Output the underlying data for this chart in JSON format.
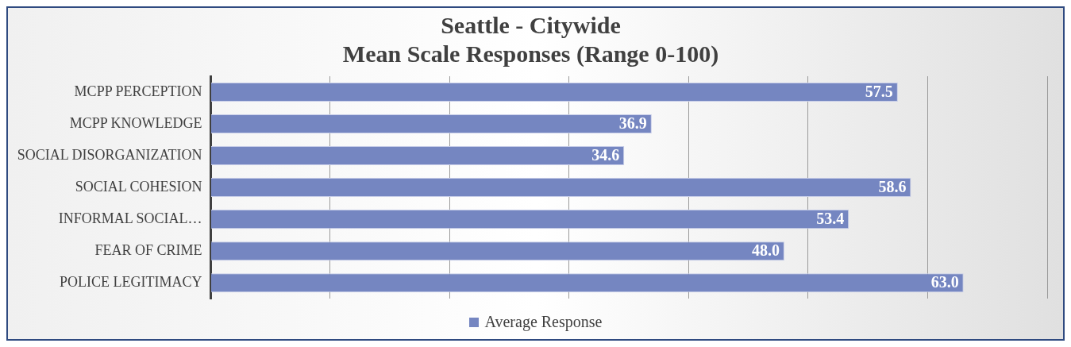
{
  "chart_data": {
    "type": "bar",
    "orientation": "horizontal",
    "title": "Seattle - Citywide\nMean Scale Responses (Range 0-100)",
    "categories": [
      "MCPP PERCEPTION",
      "MCPP KNOWLEDGE",
      "SOCIAL DISORGANIZATION",
      "SOCIAL COHESION",
      "INFORMAL SOCIAL…",
      "FEAR OF CRIME",
      "POLICE LEGITIMACY"
    ],
    "series": [
      {
        "name": "Average Response",
        "color": "#7586c1",
        "values": [
          57.5,
          36.9,
          34.6,
          58.6,
          53.4,
          48.0,
          63.0
        ],
        "value_labels": [
          "57.5",
          "36.9",
          "34.6",
          "58.6",
          "53.4",
          "48.0",
          "63.0"
        ]
      }
    ],
    "tick_labels": "y",
    "grid": "x",
    "legend": "bottom"
  }
}
